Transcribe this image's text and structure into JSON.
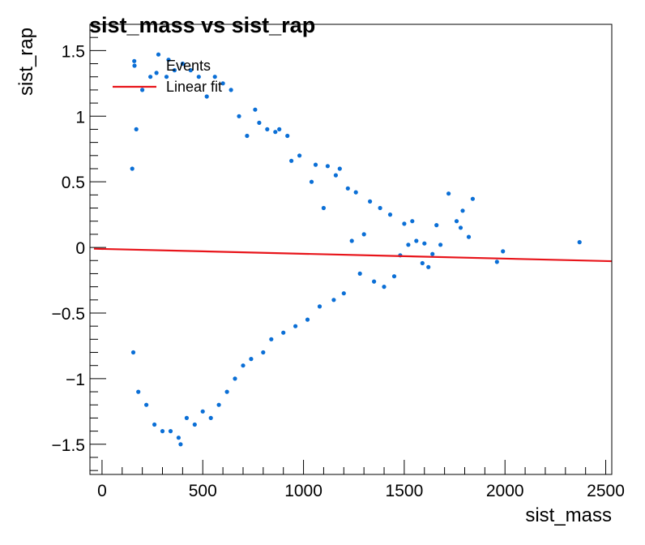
{
  "chart_data": {
    "type": "scatter",
    "title": "sist_mass vs sist_rap",
    "xlabel": "sist_mass",
    "ylabel": "sist_rap",
    "xlim": [
      -60,
      2530
    ],
    "ylim": [
      -1.73,
      1.7
    ],
    "x_ticks": [
      0,
      500,
      1000,
      1500,
      2000,
      2500
    ],
    "x_tick_labels": [
      "0",
      "500",
      "1000",
      "1500",
      "2000",
      "2500"
    ],
    "y_ticks": [
      -1.5,
      -1,
      -0.5,
      0,
      0.5,
      1,
      1.5
    ],
    "y_tick_labels": [
      "−1.5",
      "−1",
      "−0.5",
      "0",
      "0.5",
      "1",
      "1.5"
    ],
    "grid": false,
    "legend_position": "top-left",
    "legend": [
      {
        "label": "Events",
        "kind": "marker"
      },
      {
        "label": "Linear fit",
        "kind": "line"
      }
    ],
    "series": [
      {
        "name": "Events",
        "color": "#0b6fd6",
        "points": [
          [
            1480,
            -0.06
          ],
          [
            1500,
            0.18
          ],
          [
            1520,
            0.02
          ],
          [
            1540,
            0.2
          ],
          [
            1560,
            0.05
          ],
          [
            1590,
            -0.12
          ],
          [
            1600,
            0.03
          ],
          [
            1640,
            -0.05
          ],
          [
            1660,
            0.17
          ],
          [
            1680,
            0.02
          ],
          [
            1720,
            0.41
          ],
          [
            1760,
            0.2
          ],
          [
            1780,
            0.15
          ],
          [
            1790,
            0.28
          ],
          [
            1820,
            0.08
          ],
          [
            1840,
            0.37
          ],
          [
            1960,
            -0.11
          ],
          [
            1990,
            -0.03
          ],
          [
            2370,
            0.04
          ],
          [
            1620,
            -0.15
          ],
          [
            1450,
            -0.22
          ],
          [
            1430,
            0.25
          ],
          [
            1400,
            -0.3
          ],
          [
            1380,
            0.3
          ],
          [
            1350,
            -0.26
          ],
          [
            1330,
            0.35
          ],
          [
            1300,
            0.1
          ],
          [
            1280,
            -0.2
          ],
          [
            1260,
            0.42
          ],
          [
            1240,
            0.05
          ],
          [
            1220,
            0.45
          ],
          [
            1200,
            -0.35
          ],
          [
            1180,
            0.6
          ],
          [
            1160,
            0.55
          ],
          [
            1150,
            -0.4
          ],
          [
            1120,
            0.62
          ],
          [
            1100,
            0.3
          ],
          [
            1080,
            -0.45
          ],
          [
            1060,
            0.63
          ],
          [
            1040,
            0.5
          ],
          [
            1020,
            -0.55
          ],
          [
            980,
            0.7
          ],
          [
            960,
            -0.6
          ],
          [
            940,
            0.66
          ],
          [
            920,
            0.85
          ],
          [
            900,
            -0.65
          ],
          [
            880,
            0.9
          ],
          [
            860,
            0.88
          ],
          [
            840,
            -0.7
          ],
          [
            820,
            0.9
          ],
          [
            800,
            -0.8
          ],
          [
            780,
            0.95
          ],
          [
            760,
            1.05
          ],
          [
            740,
            -0.85
          ],
          [
            720,
            0.85
          ],
          [
            700,
            -0.9
          ],
          [
            680,
            1.0
          ],
          [
            660,
            -1.0
          ],
          [
            640,
            1.2
          ],
          [
            620,
            -1.1
          ],
          [
            600,
            1.25
          ],
          [
            580,
            -1.2
          ],
          [
            560,
            1.3
          ],
          [
            540,
            -1.3
          ],
          [
            520,
            1.15
          ],
          [
            500,
            -1.25
          ],
          [
            480,
            1.3
          ],
          [
            460,
            -1.35
          ],
          [
            440,
            1.35
          ],
          [
            420,
            -1.3
          ],
          [
            400,
            1.4
          ],
          [
            380,
            -1.45
          ],
          [
            360,
            1.35
          ],
          [
            340,
            -1.4
          ],
          [
            320,
            1.3
          ],
          [
            300,
            -1.4
          ],
          [
            280,
            1.47
          ],
          [
            260,
            -1.35
          ],
          [
            240,
            1.3
          ],
          [
            220,
            -1.2
          ],
          [
            200,
            1.2
          ],
          [
            180,
            -1.1
          ],
          [
            160,
            1.42
          ],
          [
            170,
            0.9
          ],
          [
            150,
            0.6
          ],
          [
            155,
            -0.8
          ],
          [
            390,
            -1.5
          ],
          [
            270,
            1.33
          ],
          [
            330,
            1.43
          ]
        ]
      }
    ],
    "fit": {
      "name": "Linear fit",
      "color": "#e8141a",
      "x": [
        -40,
        2530
      ],
      "y": [
        -0.01,
        -0.105
      ]
    }
  }
}
